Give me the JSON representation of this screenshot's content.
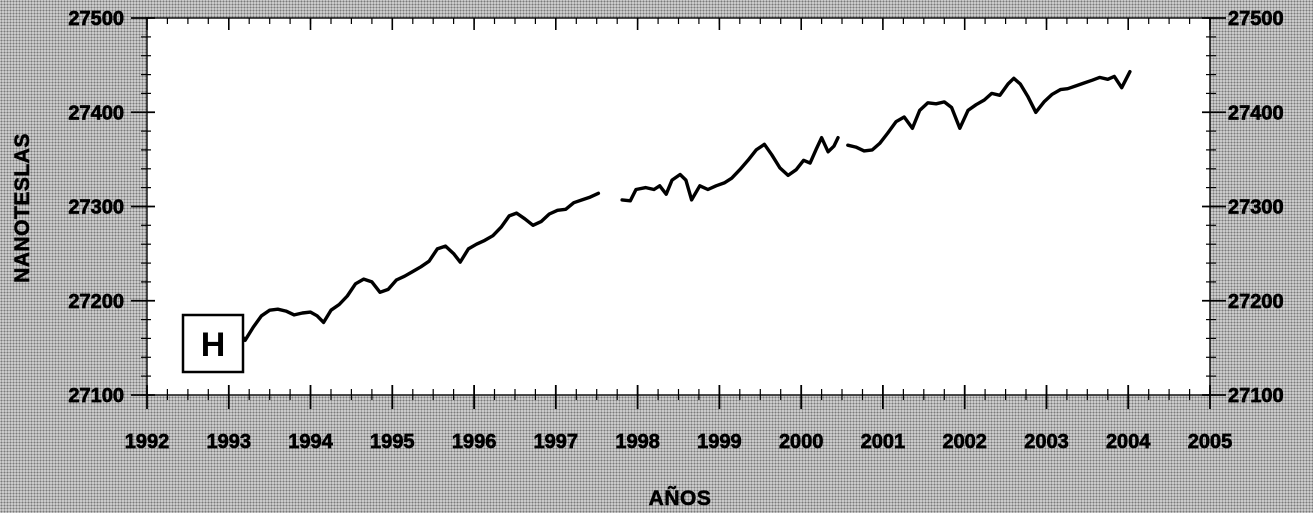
{
  "colors": {
    "background": "#d2d2d2",
    "plot_background": "#ffffff",
    "ink": "#000000"
  },
  "chart_data": {
    "type": "line",
    "xlabel": "AÑOS",
    "ylabel": "NANOTESLAS",
    "xlim": [
      1992,
      2005
    ],
    "ylim": [
      27100,
      27500
    ],
    "xticks": [
      1992,
      1993,
      1994,
      1995,
      1996,
      1997,
      1998,
      1999,
      2000,
      2001,
      2002,
      2003,
      2004,
      2005
    ],
    "yticks": [
      27500,
      27400,
      27300,
      27200,
      27100
    ],
    "right_axis_labels": true,
    "grid": false,
    "annotations": [
      {
        "text": "H",
        "boxed": true
      }
    ],
    "series": [
      {
        "segments": [
          [
            [
              1993.1,
              27170
            ],
            [
              1993.2,
              27158
            ],
            [
              1993.3,
              27172
            ],
            [
              1993.4,
              27184
            ],
            [
              1993.5,
              27190
            ],
            [
              1993.6,
              27191
            ],
            [
              1993.7,
              27189
            ],
            [
              1993.8,
              27185
            ],
            [
              1993.9,
              27187
            ],
            [
              1994.0,
              27188
            ],
            [
              1994.08,
              27184
            ],
            [
              1994.16,
              27177
            ],
            [
              1994.25,
              27190
            ],
            [
              1994.35,
              27196
            ],
            [
              1994.45,
              27205
            ],
            [
              1994.55,
              27218
            ],
            [
              1994.65,
              27223
            ],
            [
              1994.75,
              27220
            ],
            [
              1994.85,
              27209
            ],
            [
              1994.95,
              27212
            ],
            [
              1995.05,
              27222
            ],
            [
              1995.15,
              27226
            ],
            [
              1995.25,
              27231
            ],
            [
              1995.35,
              27236
            ],
            [
              1995.45,
              27242
            ],
            [
              1995.55,
              27255
            ],
            [
              1995.65,
              27258
            ],
            [
              1995.75,
              27250
            ],
            [
              1995.83,
              27241
            ],
            [
              1995.93,
              27255
            ],
            [
              1996.03,
              27260
            ],
            [
              1996.13,
              27264
            ],
            [
              1996.23,
              27269
            ],
            [
              1996.33,
              27278
            ],
            [
              1996.43,
              27290
            ],
            [
              1996.52,
              27293
            ],
            [
              1996.62,
              27287
            ],
            [
              1996.72,
              27280
            ],
            [
              1996.82,
              27284
            ],
            [
              1996.92,
              27292
            ],
            [
              1997.02,
              27296
            ],
            [
              1997.12,
              27297
            ],
            [
              1997.22,
              27304
            ],
            [
              1997.32,
              27307
            ],
            [
              1997.42,
              27310
            ],
            [
              1997.52,
              27314
            ]
          ],
          [
            [
              1997.81,
              27307
            ],
            [
              1997.91,
              27306
            ],
            [
              1997.98,
              27318
            ],
            [
              1998.1,
              27320
            ],
            [
              1998.2,
              27318
            ],
            [
              1998.27,
              27322
            ],
            [
              1998.35,
              27313
            ],
            [
              1998.42,
              27328
            ],
            [
              1998.52,
              27334
            ],
            [
              1998.59,
              27328
            ],
            [
              1998.66,
              27307
            ],
            [
              1998.76,
              27322
            ],
            [
              1998.86,
              27318
            ],
            [
              1998.96,
              27322
            ],
            [
              1999.06,
              27325
            ],
            [
              1999.15,
              27330
            ],
            [
              1999.25,
              27339
            ],
            [
              1999.35,
              27349
            ],
            [
              1999.45,
              27360
            ],
            [
              1999.55,
              27366
            ],
            [
              1999.64,
              27355
            ],
            [
              1999.74,
              27341
            ],
            [
              1999.84,
              27333
            ],
            [
              1999.94,
              27339
            ],
            [
              2000.03,
              27349
            ],
            [
              2000.11,
              27346
            ],
            [
              2000.18,
              27360
            ],
            [
              2000.25,
              27373
            ],
            [
              2000.33,
              27358
            ],
            [
              2000.4,
              27364
            ],
            [
              2000.45,
              27373
            ]
          ],
          [
            [
              2000.57,
              27365
            ],
            [
              2000.67,
              27363
            ],
            [
              2000.77,
              27359
            ],
            [
              2000.87,
              27360
            ],
            [
              2000.96,
              27367
            ],
            [
              2001.06,
              27378
            ],
            [
              2001.16,
              27390
            ],
            [
              2001.26,
              27395
            ],
            [
              2001.36,
              27383
            ],
            [
              2001.45,
              27402
            ],
            [
              2001.55,
              27410
            ],
            [
              2001.65,
              27409
            ],
            [
              2001.75,
              27411
            ],
            [
              2001.84,
              27405
            ],
            [
              2001.94,
              27383
            ],
            [
              2002.04,
              27402
            ],
            [
              2002.14,
              27408
            ],
            [
              2002.24,
              27413
            ],
            [
              2002.33,
              27420
            ],
            [
              2002.43,
              27418
            ],
            [
              2002.53,
              27430
            ],
            [
              2002.6,
              27436
            ],
            [
              2002.68,
              27430
            ],
            [
              2002.77,
              27417
            ],
            [
              2002.87,
              27400
            ],
            [
              2002.97,
              27411
            ],
            [
              2003.07,
              27419
            ],
            [
              2003.17,
              27424
            ],
            [
              2003.26,
              27425
            ],
            [
              2003.36,
              27428
            ],
            [
              2003.46,
              27431
            ],
            [
              2003.56,
              27434
            ],
            [
              2003.65,
              27437
            ],
            [
              2003.75,
              27435
            ],
            [
              2003.83,
              27438
            ],
            [
              2003.92,
              27426
            ],
            [
              2004.02,
              27443
            ]
          ]
        ]
      }
    ]
  }
}
